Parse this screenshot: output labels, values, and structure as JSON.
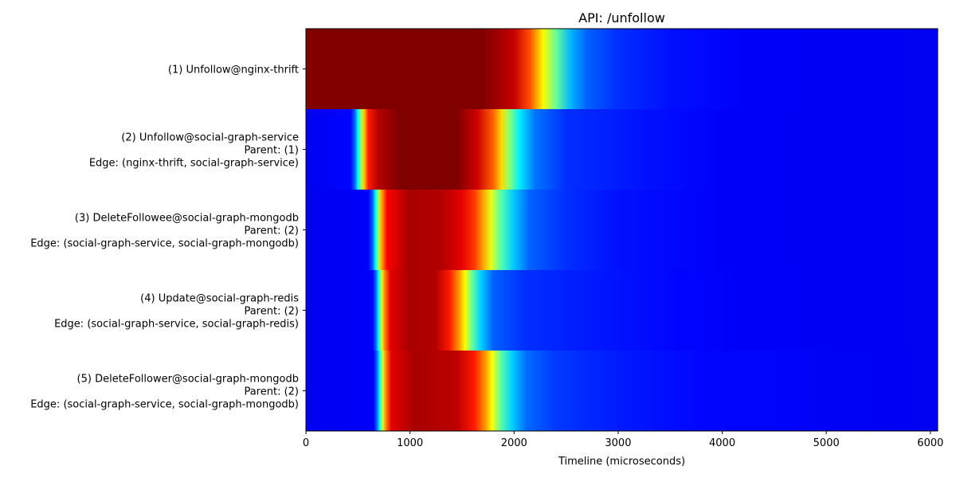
{
  "chart_data": {
    "type": "heatmap",
    "title": "API: /unfollow",
    "xlabel": "Timeline (microseconds)",
    "ylabel": "",
    "xlim": [
      0,
      6070
    ],
    "xticks": [
      0,
      1000,
      2000,
      3000,
      4000,
      5000,
      6000
    ],
    "colormap": "jet",
    "rows": [
      {
        "label_lines": [
          "(1) Unfollow@nginx-thrift"
        ],
        "stops": [
          [
            0,
            1.0
          ],
          [
            1700,
            1.0
          ],
          [
            2000,
            0.93
          ],
          [
            2150,
            0.8
          ],
          [
            2280,
            0.63
          ],
          [
            2400,
            0.48
          ],
          [
            2550,
            0.3
          ],
          [
            2700,
            0.22
          ],
          [
            3000,
            0.17
          ],
          [
            3500,
            0.14
          ],
          [
            4200,
            0.12
          ],
          [
            6070,
            0.11
          ]
        ]
      },
      {
        "label_lines": [
          "(2) Unfollow@social-graph-service",
          "Parent: (1)",
          "Edge: (nginx-thrift, social-graph-service)"
        ],
        "stops": [
          [
            0,
            0.11
          ],
          [
            430,
            0.13
          ],
          [
            470,
            0.22
          ],
          [
            500,
            0.38
          ],
          [
            530,
            0.52
          ],
          [
            560,
            0.68
          ],
          [
            600,
            0.85
          ],
          [
            700,
            0.95
          ],
          [
            900,
            1.0
          ],
          [
            1450,
            1.0
          ],
          [
            1650,
            0.92
          ],
          [
            1800,
            0.78
          ],
          [
            1880,
            0.66
          ],
          [
            1950,
            0.52
          ],
          [
            2050,
            0.36
          ],
          [
            2200,
            0.24
          ],
          [
            2500,
            0.17
          ],
          [
            3300,
            0.14
          ],
          [
            4000,
            0.12
          ],
          [
            6070,
            0.11
          ]
        ]
      },
      {
        "label_lines": [
          "(3) DeleteFollowee@social-graph-mongodb",
          "Parent: (2)",
          "Edge: (social-graph-service, social-graph-mongodb)"
        ],
        "stops": [
          [
            0,
            0.11
          ],
          [
            600,
            0.12
          ],
          [
            640,
            0.22
          ],
          [
            670,
            0.38
          ],
          [
            700,
            0.55
          ],
          [
            730,
            0.72
          ],
          [
            780,
            0.88
          ],
          [
            1000,
            0.96
          ],
          [
            1300,
            0.95
          ],
          [
            1500,
            0.9
          ],
          [
            1620,
            0.82
          ],
          [
            1700,
            0.72
          ],
          [
            1780,
            0.6
          ],
          [
            1880,
            0.45
          ],
          [
            2000,
            0.32
          ],
          [
            2150,
            0.22
          ],
          [
            2500,
            0.17
          ],
          [
            3000,
            0.14
          ],
          [
            4000,
            0.12
          ],
          [
            6070,
            0.11
          ]
        ]
      },
      {
        "label_lines": [
          "(4) Update@social-graph-redis",
          "Parent: (2)",
          "Edge: (social-graph-service, social-graph-redis)"
        ],
        "stops": [
          [
            0,
            0.11
          ],
          [
            640,
            0.12
          ],
          [
            670,
            0.22
          ],
          [
            700,
            0.4
          ],
          [
            730,
            0.58
          ],
          [
            760,
            0.75
          ],
          [
            810,
            0.9
          ],
          [
            1000,
            0.96
          ],
          [
            1250,
            0.95
          ],
          [
            1380,
            0.85
          ],
          [
            1470,
            0.73
          ],
          [
            1530,
            0.62
          ],
          [
            1600,
            0.47
          ],
          [
            1680,
            0.33
          ],
          [
            1800,
            0.22
          ],
          [
            2100,
            0.17
          ],
          [
            2700,
            0.15
          ],
          [
            3500,
            0.13
          ],
          [
            4200,
            0.12
          ],
          [
            6070,
            0.11
          ]
        ]
      },
      {
        "label_lines": [
          "(5) DeleteFollower@social-graph-mongodb",
          "Parent: (2)",
          "Edge: (social-graph-service, social-graph-mongodb)"
        ],
        "stops": [
          [
            0,
            0.11
          ],
          [
            650,
            0.12
          ],
          [
            680,
            0.22
          ],
          [
            710,
            0.4
          ],
          [
            740,
            0.58
          ],
          [
            770,
            0.75
          ],
          [
            820,
            0.9
          ],
          [
            1050,
            0.96
          ],
          [
            1450,
            0.94
          ],
          [
            1620,
            0.85
          ],
          [
            1720,
            0.73
          ],
          [
            1790,
            0.62
          ],
          [
            1870,
            0.47
          ],
          [
            1980,
            0.33
          ],
          [
            2120,
            0.23
          ],
          [
            2400,
            0.18
          ],
          [
            3000,
            0.15
          ],
          [
            3800,
            0.13
          ],
          [
            6070,
            0.11
          ]
        ]
      }
    ]
  }
}
